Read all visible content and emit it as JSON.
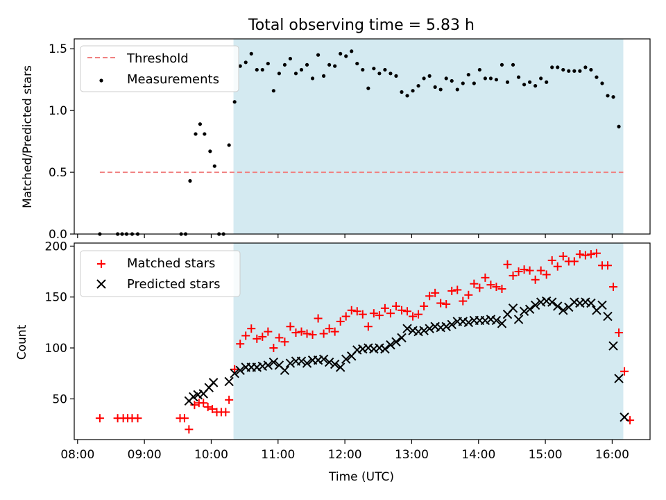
{
  "title": "Total observing time = 5.83 h",
  "xlabel": "Time (UTC)",
  "colors": {
    "span": "#d4eaf1",
    "threshold": "#f08080",
    "matched": "#ff0000",
    "predicted": "#000000",
    "measurements": "#000000"
  },
  "chart_data": [
    {
      "type": "scatter",
      "ylabel": "Matched/Predicted stars",
      "ylim": [
        0,
        1.58
      ],
      "yticks": [
        "0.0",
        "0.5",
        "1.0",
        "1.5"
      ],
      "xlim": [
        "07:57",
        "16:34"
      ],
      "legend_position": "upper left",
      "span": {
        "from": "10:20",
        "to": "16:10"
      },
      "threshold": {
        "name": "Threshold",
        "value": 0.5,
        "from": "08:20",
        "to": "16:10"
      },
      "series": [
        {
          "name": "Measurements",
          "points": [
            [
              "08:20",
              0.0
            ],
            [
              "08:36",
              0.0
            ],
            [
              "08:40",
              0.0
            ],
            [
              "08:44",
              0.0
            ],
            [
              "08:49",
              0.0
            ],
            [
              "08:54",
              0.0
            ],
            [
              "09:33",
              0.0
            ],
            [
              "09:37",
              0.0
            ],
            [
              "09:41",
              0.43
            ],
            [
              "09:46",
              0.81
            ],
            [
              "09:50",
              0.89
            ],
            [
              "09:54",
              0.81
            ],
            [
              "09:59",
              0.67
            ],
            [
              "10:03",
              0.55
            ],
            [
              "10:07",
              0.0
            ],
            [
              "10:11",
              0.0
            ],
            [
              "10:16",
              0.72
            ],
            [
              "10:21",
              1.07
            ],
            [
              "10:26",
              1.36
            ],
            [
              "10:31",
              1.39
            ],
            [
              "10:36",
              1.46
            ],
            [
              "10:41",
              1.33
            ],
            [
              "10:46",
              1.33
            ],
            [
              "10:51",
              1.38
            ],
            [
              "10:56",
              1.16
            ],
            [
              "11:01",
              1.3
            ],
            [
              "11:06",
              1.37
            ],
            [
              "11:11",
              1.42
            ],
            [
              "11:16",
              1.3
            ],
            [
              "11:21",
              1.33
            ],
            [
              "11:26",
              1.37
            ],
            [
              "11:31",
              1.26
            ],
            [
              "11:36",
              1.45
            ],
            [
              "11:41",
              1.28
            ],
            [
              "11:46",
              1.37
            ],
            [
              "11:51",
              1.36
            ],
            [
              "11:56",
              1.46
            ],
            [
              "12:01",
              1.44
            ],
            [
              "12:06",
              1.48
            ],
            [
              "12:11",
              1.38
            ],
            [
              "12:16",
              1.33
            ],
            [
              "12:21",
              1.18
            ],
            [
              "12:26",
              1.34
            ],
            [
              "12:31",
              1.3
            ],
            [
              "12:36",
              1.33
            ],
            [
              "12:41",
              1.3
            ],
            [
              "12:46",
              1.28
            ],
            [
              "12:51",
              1.15
            ],
            [
              "12:56",
              1.12
            ],
            [
              "13:01",
              1.16
            ],
            [
              "13:06",
              1.2
            ],
            [
              "13:11",
              1.26
            ],
            [
              "13:16",
              1.28
            ],
            [
              "13:21",
              1.19
            ],
            [
              "13:26",
              1.17
            ],
            [
              "13:31",
              1.26
            ],
            [
              "13:36",
              1.24
            ],
            [
              "13:41",
              1.17
            ],
            [
              "13:46",
              1.22
            ],
            [
              "13:51",
              1.29
            ],
            [
              "13:56",
              1.22
            ],
            [
              "14:01",
              1.33
            ],
            [
              "14:06",
              1.26
            ],
            [
              "14:11",
              1.26
            ],
            [
              "14:16",
              1.25
            ],
            [
              "14:21",
              1.37
            ],
            [
              "14:26",
              1.23
            ],
            [
              "14:31",
              1.37
            ],
            [
              "14:36",
              1.27
            ],
            [
              "14:41",
              1.21
            ],
            [
              "14:46",
              1.23
            ],
            [
              "14:51",
              1.2
            ],
            [
              "14:56",
              1.26
            ],
            [
              "15:01",
              1.23
            ],
            [
              "15:06",
              1.35
            ],
            [
              "15:11",
              1.35
            ],
            [
              "15:16",
              1.33
            ],
            [
              "15:21",
              1.32
            ],
            [
              "15:26",
              1.32
            ],
            [
              "15:31",
              1.32
            ],
            [
              "15:36",
              1.35
            ],
            [
              "15:41",
              1.33
            ],
            [
              "15:46",
              1.27
            ],
            [
              "15:51",
              1.22
            ],
            [
              "15:56",
              1.12
            ],
            [
              "16:01",
              1.11
            ],
            [
              "16:06",
              0.87
            ]
          ]
        }
      ]
    },
    {
      "type": "scatter",
      "ylabel": "Count",
      "ylim": [
        10,
        203
      ],
      "yticks": [
        "50",
        "100",
        "150",
        "200"
      ],
      "xlim": [
        "07:57",
        "16:34"
      ],
      "xticks": [
        "08:00",
        "09:00",
        "10:00",
        "11:00",
        "12:00",
        "13:00",
        "14:00",
        "15:00",
        "16:00"
      ],
      "legend_position": "upper left",
      "span": {
        "from": "10:20",
        "to": "16:10"
      },
      "series": [
        {
          "name": "Matched stars",
          "points": [
            [
              "08:20",
              31
            ],
            [
              "08:36",
              31
            ],
            [
              "08:41",
              31
            ],
            [
              "08:45",
              31
            ],
            [
              "08:49",
              31
            ],
            [
              "08:54",
              31
            ],
            [
              "09:32",
              31
            ],
            [
              "09:36",
              31
            ],
            [
              "09:40",
              20
            ],
            [
              "09:45",
              44
            ],
            [
              "09:49",
              46
            ],
            [
              "09:53",
              46
            ],
            [
              "09:57",
              42
            ],
            [
              "10:01",
              40
            ],
            [
              "10:05",
              37
            ],
            [
              "10:09",
              37
            ],
            [
              "10:13",
              37
            ],
            [
              "10:16",
              49
            ],
            [
              "10:21",
              79
            ],
            [
              "10:26",
              104
            ],
            [
              "10:31",
              112
            ],
            [
              "10:36",
              119
            ],
            [
              "10:41",
              109
            ],
            [
              "10:46",
              111
            ],
            [
              "10:51",
              116
            ],
            [
              "10:56",
              100
            ],
            [
              "11:01",
              110
            ],
            [
              "11:06",
              106
            ],
            [
              "11:11",
              121
            ],
            [
              "11:16",
              115
            ],
            [
              "11:21",
              116
            ],
            [
              "11:26",
              114
            ],
            [
              "11:31",
              113
            ],
            [
              "11:36",
              129
            ],
            [
              "11:41",
              114
            ],
            [
              "11:46",
              119
            ],
            [
              "11:51",
              116
            ],
            [
              "11:56",
              126
            ],
            [
              "12:01",
              131
            ],
            [
              "12:06",
              137
            ],
            [
              "12:11",
              136
            ],
            [
              "12:16",
              133
            ],
            [
              "12:21",
              121
            ],
            [
              "12:26",
              134
            ],
            [
              "12:31",
              132
            ],
            [
              "12:36",
              139
            ],
            [
              "12:41",
              134
            ],
            [
              "12:46",
              141
            ],
            [
              "12:51",
              137
            ],
            [
              "12:56",
              136
            ],
            [
              "13:01",
              131
            ],
            [
              "13:06",
              133
            ],
            [
              "13:11",
              141
            ],
            [
              "13:16",
              151
            ],
            [
              "13:21",
              154
            ],
            [
              "13:26",
              144
            ],
            [
              "13:31",
              143
            ],
            [
              "13:36",
              156
            ],
            [
              "13:41",
              157
            ],
            [
              "13:46",
              146
            ],
            [
              "13:51",
              152
            ],
            [
              "13:56",
              163
            ],
            [
              "14:01",
              159
            ],
            [
              "14:06",
              169
            ],
            [
              "14:11",
              162
            ],
            [
              "14:16",
              160
            ],
            [
              "14:21",
              158
            ],
            [
              "14:26",
              182
            ],
            [
              "14:31",
              171
            ],
            [
              "14:36",
              175
            ],
            [
              "14:41",
              177
            ],
            [
              "14:46",
              176
            ],
            [
              "14:51",
              167
            ],
            [
              "14:56",
              176
            ],
            [
              "15:01",
              172
            ],
            [
              "15:06",
              186
            ],
            [
              "15:11",
              180
            ],
            [
              "15:16",
              190
            ],
            [
              "15:21",
              185
            ],
            [
              "15:26",
              185
            ],
            [
              "15:31",
              192
            ],
            [
              "15:36",
              191
            ],
            [
              "15:41",
              192
            ],
            [
              "15:46",
              193
            ],
            [
              "15:51",
              181
            ],
            [
              "15:56",
              181
            ],
            [
              "16:01",
              160
            ],
            [
              "16:06",
              115
            ],
            [
              "16:11",
              77
            ],
            [
              "16:16",
              29
            ]
          ]
        },
        {
          "name": "Predicted stars",
          "points": [
            [
              "09:40",
              48
            ],
            [
              "09:44",
              52
            ],
            [
              "09:48",
              54
            ],
            [
              "09:53",
              55
            ],
            [
              "09:58",
              61
            ],
            [
              "10:02",
              66
            ],
            [
              "10:16",
              67
            ],
            [
              "10:21",
              75
            ],
            [
              "10:26",
              78
            ],
            [
              "10:31",
              81
            ],
            [
              "10:36",
              81
            ],
            [
              "10:41",
              81
            ],
            [
              "10:46",
              82
            ],
            [
              "10:51",
              83
            ],
            [
              "10:56",
              86
            ],
            [
              "11:01",
              83
            ],
            [
              "11:06",
              78
            ],
            [
              "11:11",
              85
            ],
            [
              "11:16",
              87
            ],
            [
              "11:21",
              87
            ],
            [
              "11:26",
              85
            ],
            [
              "11:31",
              88
            ],
            [
              "11:36",
              88
            ],
            [
              "11:41",
              89
            ],
            [
              "11:46",
              86
            ],
            [
              "11:51",
              84
            ],
            [
              "11:56",
              81
            ],
            [
              "12:01",
              89
            ],
            [
              "12:06",
              92
            ],
            [
              "12:11",
              98
            ],
            [
              "12:16",
              99
            ],
            [
              "12:21",
              100
            ],
            [
              "12:26",
              99
            ],
            [
              "12:31",
              100
            ],
            [
              "12:36",
              99
            ],
            [
              "12:41",
              103
            ],
            [
              "12:46",
              106
            ],
            [
              "12:51",
              110
            ],
            [
              "12:56",
              119
            ],
            [
              "13:01",
              117
            ],
            [
              "13:06",
              116
            ],
            [
              "13:11",
              117
            ],
            [
              "13:16",
              119
            ],
            [
              "13:21",
              121
            ],
            [
              "13:26",
              120
            ],
            [
              "13:31",
              121
            ],
            [
              "13:36",
              123
            ],
            [
              "13:41",
              126
            ],
            [
              "13:46",
              126
            ],
            [
              "13:51",
              125
            ],
            [
              "13:56",
              127
            ],
            [
              "14:01",
              127
            ],
            [
              "14:06",
              127
            ],
            [
              "14:11",
              128
            ],
            [
              "14:16",
              127
            ],
            [
              "14:21",
              124
            ],
            [
              "14:26",
              133
            ],
            [
              "14:31",
              139
            ],
            [
              "14:36",
              128
            ],
            [
              "14:41",
              136
            ],
            [
              "14:46",
              138
            ],
            [
              "14:51",
              142
            ],
            [
              "14:56",
              145
            ],
            [
              "15:01",
              146
            ],
            [
              "15:06",
              145
            ],
            [
              "15:11",
              141
            ],
            [
              "15:16",
              137
            ],
            [
              "15:21",
              140
            ],
            [
              "15:26",
              145
            ],
            [
              "15:31",
              144
            ],
            [
              "15:36",
              145
            ],
            [
              "15:41",
              144
            ],
            [
              "15:46",
              137
            ],
            [
              "15:51",
              142
            ],
            [
              "15:56",
              131
            ],
            [
              "16:01",
              102
            ],
            [
              "16:06",
              70
            ],
            [
              "16:11",
              32
            ]
          ]
        }
      ]
    }
  ]
}
